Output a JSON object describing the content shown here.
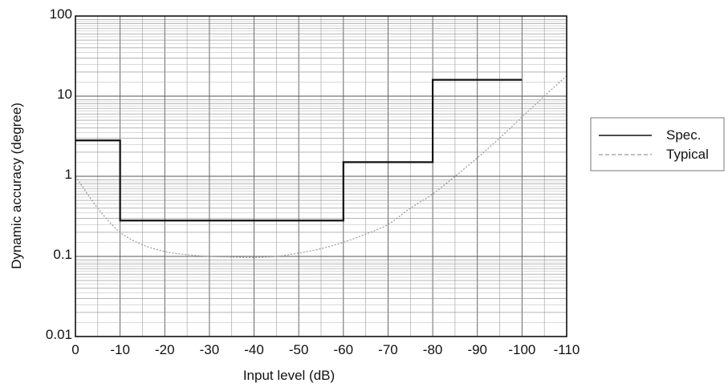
{
  "chart_data": {
    "type": "line",
    "title": "",
    "xlabel": "Input level (dB)",
    "ylabel": "Dynamic accuracy (degree)",
    "xlim": [
      0,
      -110
    ],
    "ylim": [
      0.01,
      100
    ],
    "yscale": "log",
    "grid": true,
    "legend_position": "right",
    "x_ticks": [
      0,
      -10,
      -20,
      -30,
      -40,
      -50,
      -60,
      -70,
      -80,
      -90,
      -100,
      -110
    ],
    "x_tick_labels": [
      "0",
      "-10",
      "-20",
      "-30",
      "-40",
      "-50",
      "-60",
      "-70",
      "-80",
      "-90",
      "-100",
      "-110"
    ],
    "y_ticks": [
      0.01,
      0.1,
      1,
      10,
      100
    ],
    "y_tick_labels": [
      "0.01",
      "0.1",
      "1",
      "10",
      "100"
    ],
    "series": [
      {
        "name": "Spec.",
        "style": "solid",
        "color": "#111111",
        "points": [
          [
            0,
            2.8
          ],
          [
            -10,
            2.8
          ],
          [
            -10,
            0.28
          ],
          [
            -60,
            0.28
          ],
          [
            -60,
            1.5
          ],
          [
            -80,
            1.5
          ],
          [
            -80,
            16
          ],
          [
            -100,
            16
          ]
        ]
      },
      {
        "name": "Typical",
        "style": "dashed",
        "color": "#999999",
        "points": [
          [
            0,
            1.0
          ],
          [
            -5,
            0.4
          ],
          [
            -10,
            0.2
          ],
          [
            -15,
            0.14
          ],
          [
            -20,
            0.115
          ],
          [
            -25,
            0.105
          ],
          [
            -30,
            0.1
          ],
          [
            -35,
            0.098
          ],
          [
            -40,
            0.097
          ],
          [
            -45,
            0.1
          ],
          [
            -50,
            0.11
          ],
          [
            -55,
            0.125
          ],
          [
            -60,
            0.15
          ],
          [
            -65,
            0.19
          ],
          [
            -70,
            0.25
          ],
          [
            -75,
            0.4
          ],
          [
            -80,
            0.6
          ],
          [
            -85,
            1.0
          ],
          [
            -90,
            1.7
          ],
          [
            -95,
            3.0
          ],
          [
            -100,
            5.5
          ],
          [
            -105,
            10
          ],
          [
            -110,
            18
          ]
        ]
      }
    ]
  }
}
